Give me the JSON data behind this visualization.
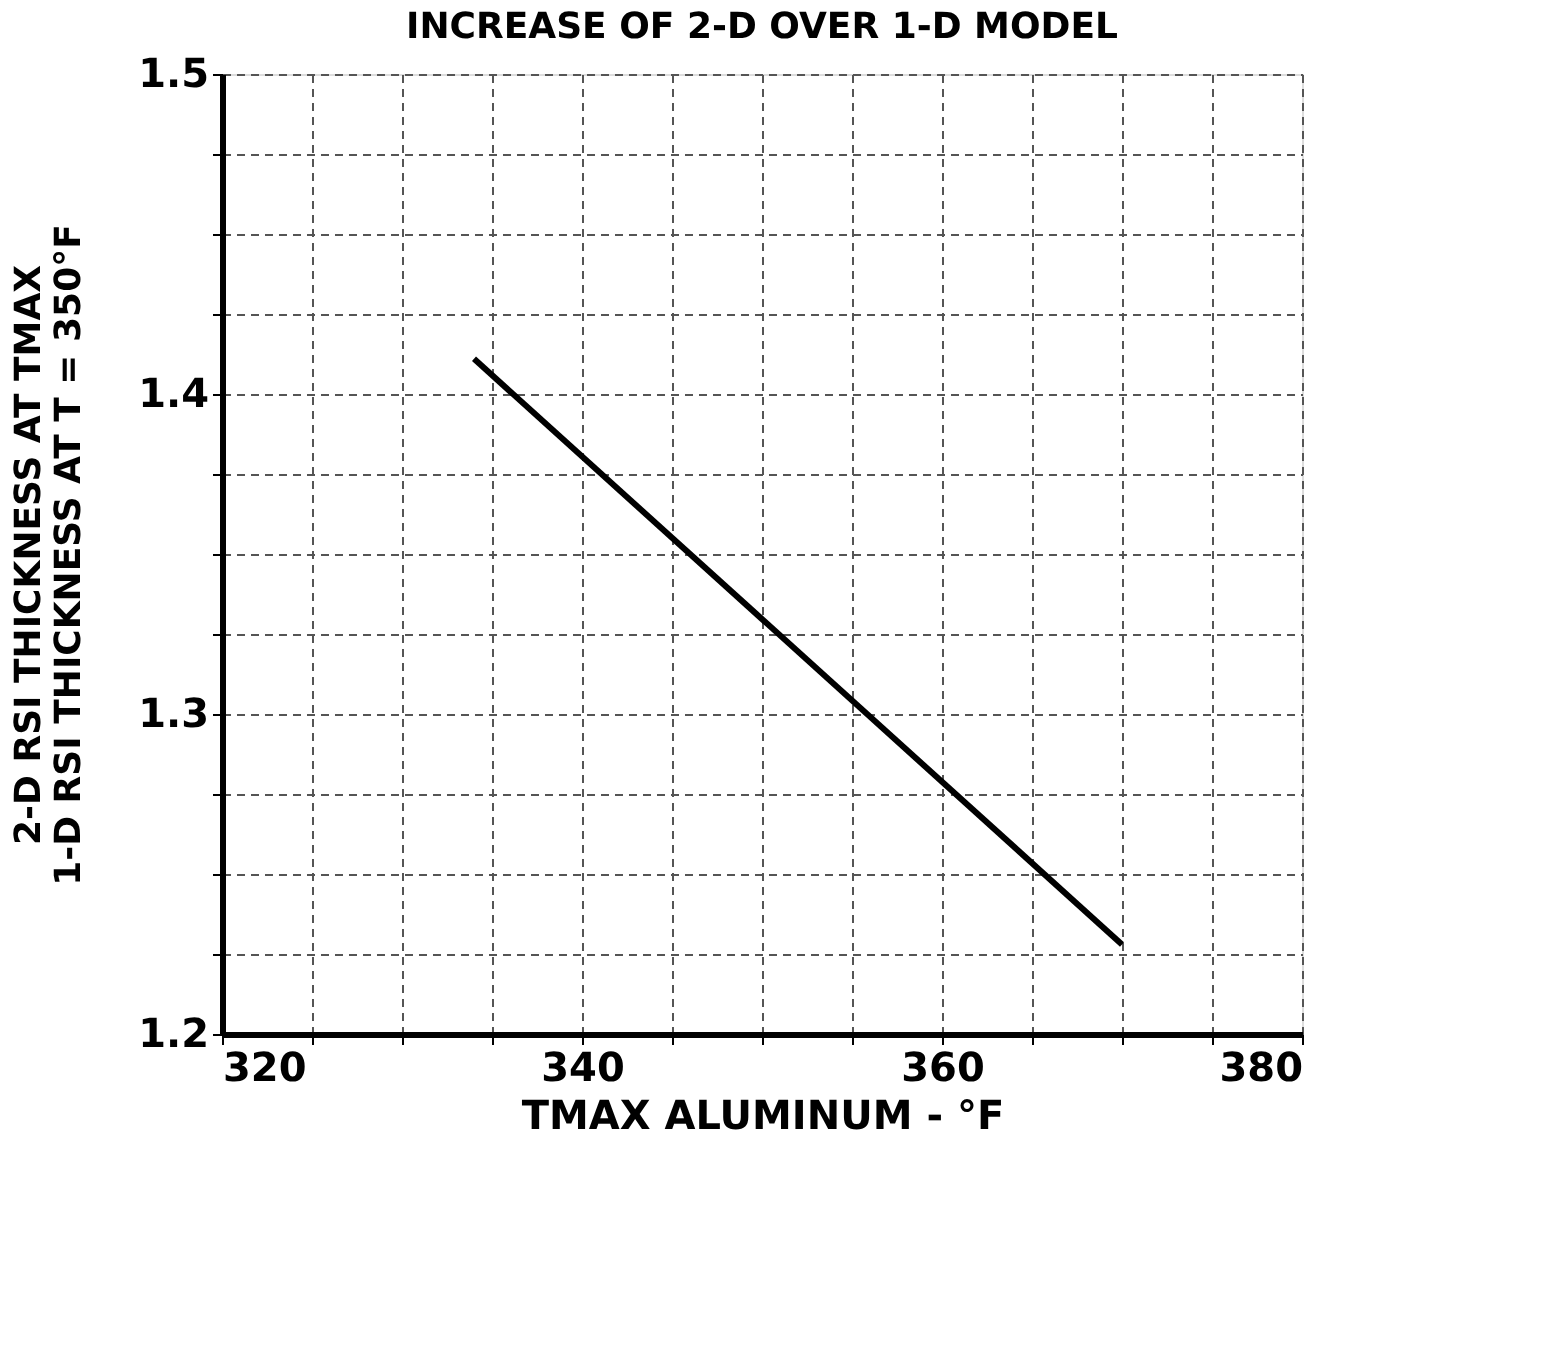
{
  "chart_data": {
    "type": "line",
    "title": "INCREASE OF 2-D OVER 1-D MODEL",
    "xlabel": "TMAX ALUMINUM - °F",
    "ylabel": [
      "2-D RSI THICKNESS AT TMAX",
      "1-D RSI THICKNESS AT T = 350°F"
    ],
    "x": [
      334,
      370
    ],
    "series": [
      {
        "color": "#000000",
        "values": [
          1.411,
          1.228
        ]
      }
    ],
    "xlim": [
      320,
      380
    ],
    "ylim": [
      1.2,
      1.5
    ],
    "xticks": [
      320,
      {
        "value": 325,
        "label": null
      },
      {
        "value": 330,
        "label": null
      },
      {
        "value": 335,
        "label": null
      },
      340,
      {
        "value": 345,
        "label": null
      },
      {
        "value": 350,
        "label": null
      },
      {
        "value": 355,
        "label": null
      },
      360,
      {
        "value": 365,
        "label": null
      },
      {
        "value": 370,
        "label": null
      },
      {
        "value": 375,
        "label": null
      },
      380
    ],
    "yticks": [
      1.2,
      {
        "value": 1.225,
        "label": null
      },
      {
        "value": 1.25,
        "label": null
      },
      {
        "value": 1.275,
        "label": null
      },
      1.3,
      {
        "value": 1.325,
        "label": null
      },
      {
        "value": 1.35,
        "label": null
      },
      {
        "value": 1.375,
        "label": null
      },
      1.4,
      {
        "value": 1.425,
        "label": null
      },
      {
        "value": 1.45,
        "label": null
      },
      {
        "value": 1.475,
        "label": null
      },
      1.5
    ],
    "grid": true,
    "marker": "none",
    "line_style": "solid"
  }
}
